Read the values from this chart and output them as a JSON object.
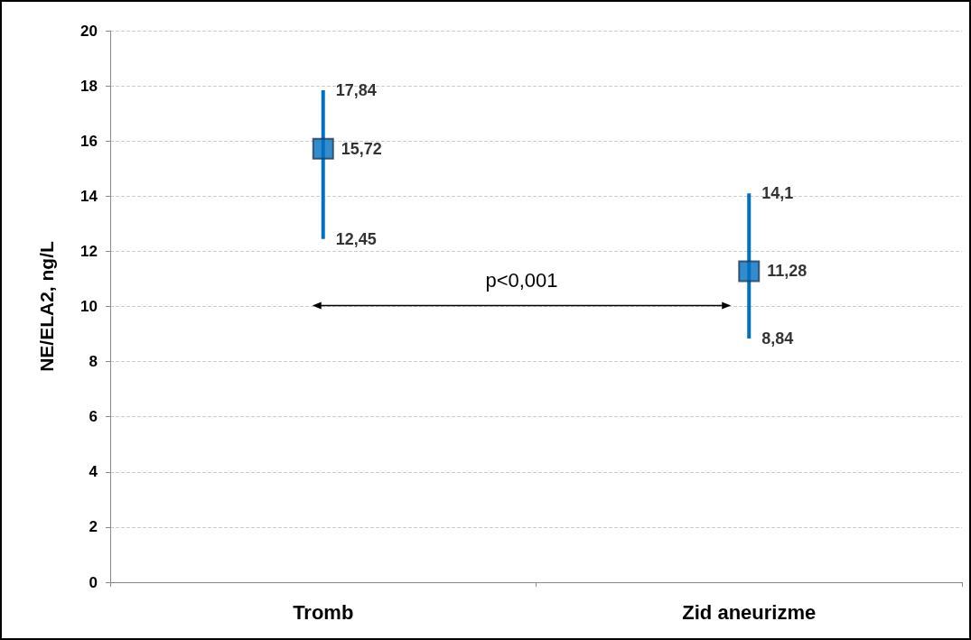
{
  "chart_data": {
    "type": "scatter",
    "ylabel": "NE/ELA2, ng/L",
    "categories": [
      "Tromb",
      "Zid aneurizme"
    ],
    "series": [
      {
        "color": "#0070c0",
        "values": [
          15.72,
          11.28
        ],
        "errors": [
          [
            12.45,
            17.84
          ],
          [
            8.84,
            14.1
          ]
        ],
        "value_labels": [
          "15,72",
          "11,28"
        ]
      }
    ],
    "ylim": [
      0,
      20
    ],
    "yticks": [
      0,
      2,
      4,
      6,
      8,
      10,
      12,
      14,
      16,
      18,
      20
    ],
    "grid": "y",
    "marker": "square",
    "annotations": [
      "p<0,001",
      {
        "text": "17,84",
        "x": "Tromb",
        "y": 17.84
      },
      {
        "text": "12,45",
        "x": "Tromb",
        "y": 12.45
      },
      {
        "text": "14,1",
        "x": "Zid aneurizme",
        "y": 14.1
      },
      {
        "text": "8,84",
        "x": "Zid aneurizme",
        "y": 8.84
      }
    ]
  }
}
